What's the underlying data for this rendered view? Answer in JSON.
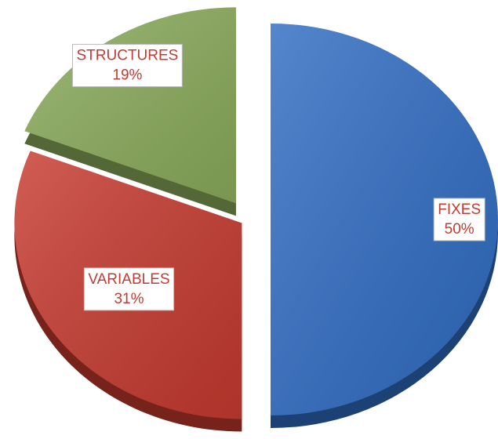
{
  "chart_data": {
    "type": "pie",
    "categories": [
      "FIXES",
      "VARIABLES",
      "STRUCTURES"
    ],
    "values": [
      50,
      31,
      19
    ],
    "value_labels": [
      "50%",
      "31%",
      "19%"
    ],
    "colors": [
      "#2f6cc2",
      "#c63a2f",
      "#8aab5b"
    ]
  }
}
